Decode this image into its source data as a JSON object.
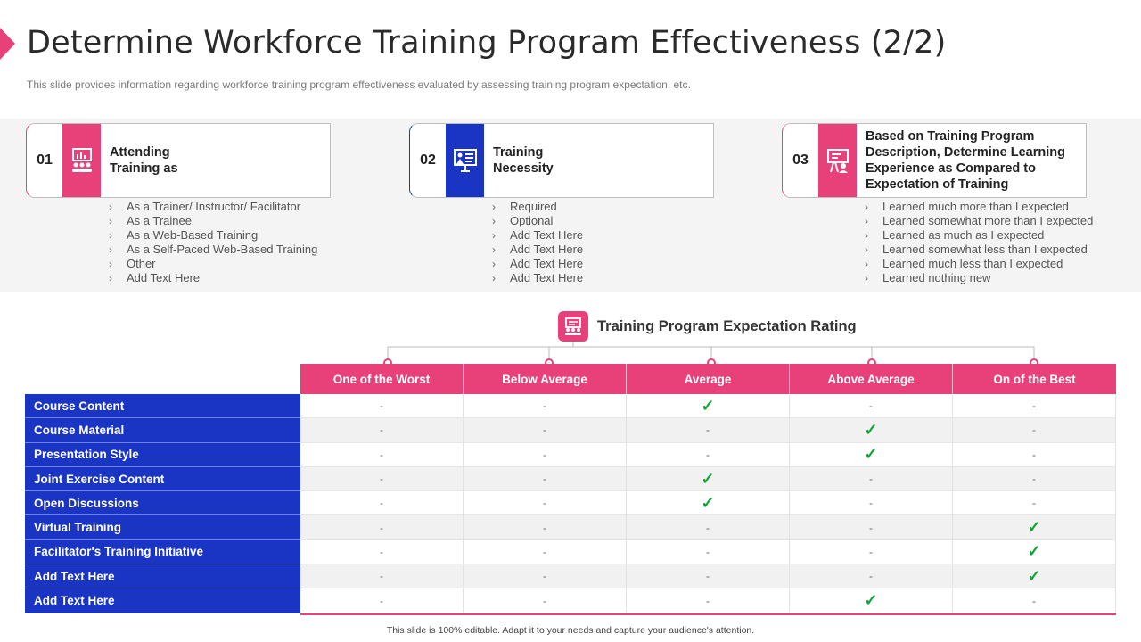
{
  "header": {
    "title": "Determine Workforce Training Program Effectiveness (2/2)",
    "subtitle": "This slide provides information regarding workforce training program effectiveness evaluated by assessing training program expectation, etc."
  },
  "colors": {
    "accent": "#e8417a",
    "blue": "#1a34c4",
    "check": "#12a338"
  },
  "cards": [
    {
      "number": "01",
      "icon": "classroom-icon",
      "title": "Attending Training as",
      "items": [
        "As a Trainer/  Instructor/ Facilitator",
        "As a Trainee",
        "As a Web-Based Training",
        "As a Self-Paced  Web-Based Training",
        "Other",
        "Add Text Here"
      ]
    },
    {
      "number": "02",
      "icon": "presentation-board-icon",
      "title": "Training Necessity",
      "items": [
        "Required",
        "Optional",
        "Add Text Here",
        "Add Text Here",
        "Add Text Here",
        "Add Text Here"
      ]
    },
    {
      "number": "03",
      "icon": "presenter-easel-icon",
      "title": "Based on Training Program Description, Determine Learning Experience as Compared to Expectation of Training",
      "items": [
        "Learned  much more than I expected",
        "Learned  somewhat more than I expected",
        "Learned  as much as I expected",
        "Learned  somewhat less than I expected",
        "Learned  much less than I expected",
        "Learned  nothing new"
      ]
    }
  ],
  "bullet_glyph": "›",
  "rating": {
    "title": "Training Program Expectation Rating",
    "icon": "training-rating-icon",
    "columns": [
      "One of the Worst",
      "Below Average",
      "Average",
      "Above Average",
      "On of the Best"
    ],
    "check_symbol": "✓",
    "empty_symbol": "-",
    "rows": [
      {
        "label": "Course Content",
        "selected": 2
      },
      {
        "label": "Course Material",
        "selected": 3
      },
      {
        "label": "Presentation Style",
        "selected": 3
      },
      {
        "label": "Joint Exercise Content",
        "selected": 2
      },
      {
        "label": "Open Discussions",
        "selected": 2
      },
      {
        "label": "Virtual Training",
        "selected": 4
      },
      {
        "label": "Facilitator's Training Initiative",
        "selected": 4
      },
      {
        "label": "Add Text Here",
        "selected": 4
      },
      {
        "label": "Add Text Here",
        "selected": 3
      }
    ]
  },
  "footer": {
    "text": "This slide is 100% editable. Adapt it to your needs and capture your audience's attention."
  }
}
